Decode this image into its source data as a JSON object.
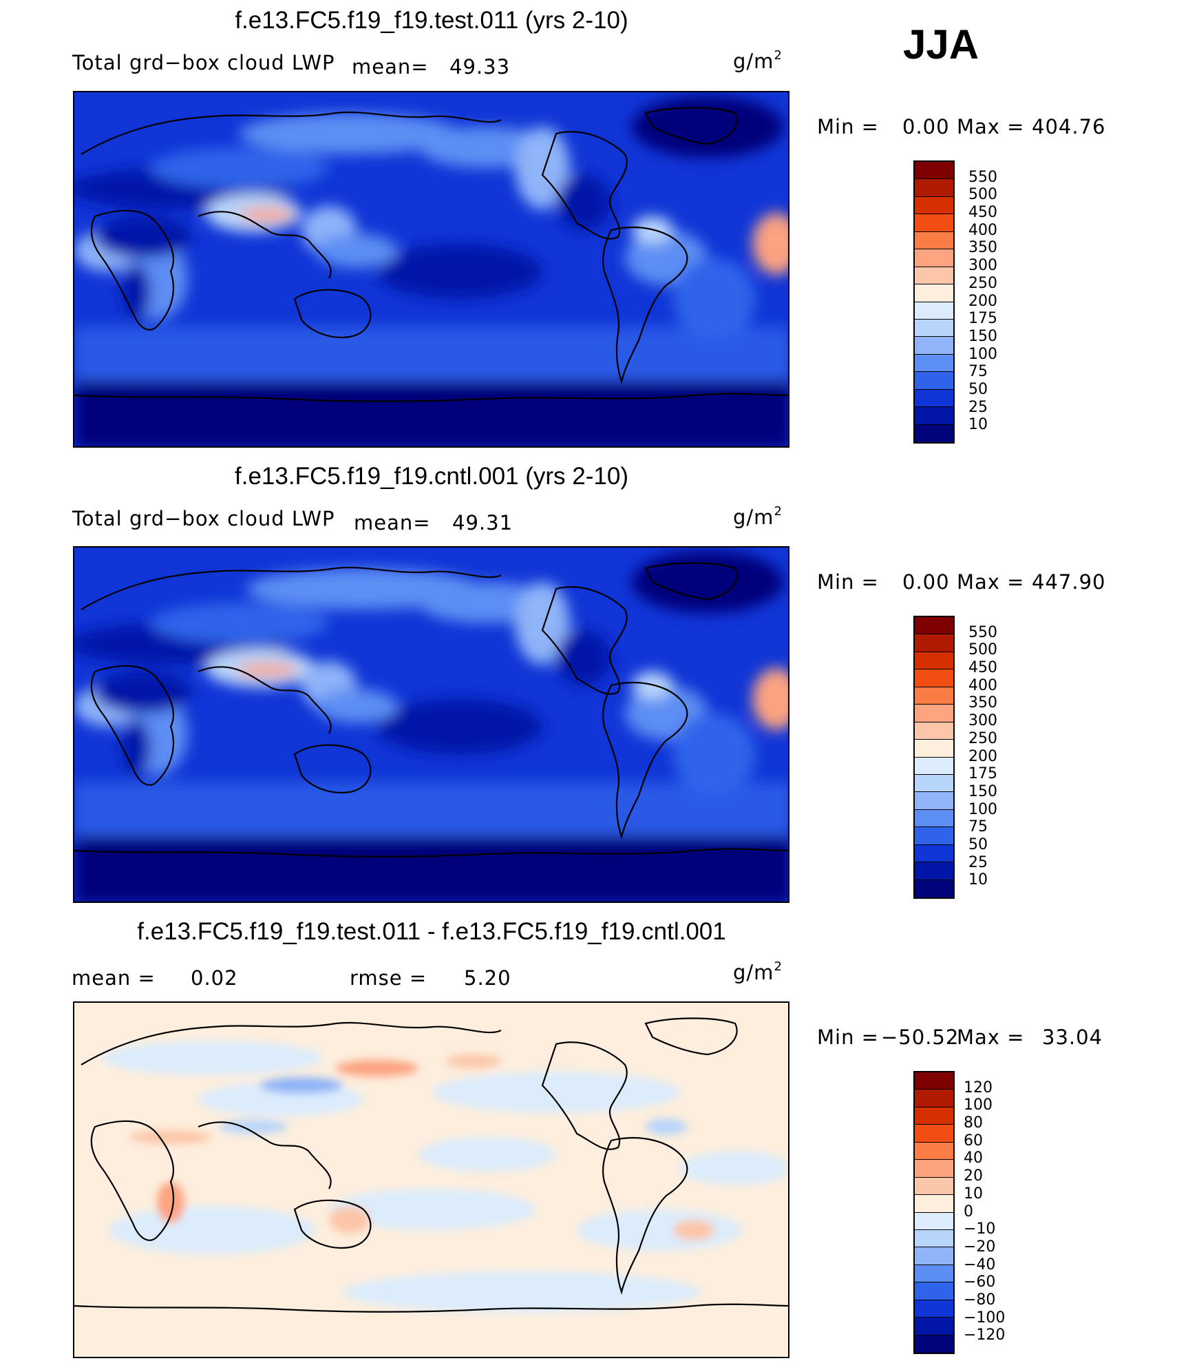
{
  "season": "JJA",
  "panel1": {
    "title": "f.e13.FC5.f19_f19.test.011 (yrs 2-10)",
    "variable": "Total grd−box cloud LWP",
    "mean_label": "mean=",
    "mean_value": "49.33",
    "units": "g/m",
    "units_exp": "2",
    "min_label": "Min  =",
    "min_value": "0.00",
    "max_label": "Max  =",
    "max_value": "404.76"
  },
  "panel2": {
    "title": "f.e13.FC5.f19_f19.cntl.001 (yrs 2-10)",
    "variable": "Total grd−box cloud LWP",
    "mean_label": "mean=",
    "mean_value": "49.31",
    "units": "g/m",
    "units_exp": "2",
    "min_label": "Min  =",
    "min_value": "0.00",
    "max_label": "Max  =",
    "max_value": "447.90"
  },
  "panel3": {
    "title": "f.e13.FC5.f19_f19.test.011 - f.e13.FC5.f19_f19.cntl.001",
    "mean_label": "mean  =",
    "mean_value": "0.02",
    "rmse_label": "rmse  =",
    "rmse_value": "5.20",
    "units": "g/m",
    "units_exp": "2",
    "min_label": "Min  =",
    "min_value": "−50.52",
    "max_label": "Max  =",
    "max_value": "33.04"
  },
  "colorbar_abs": {
    "labels": [
      "550",
      "500",
      "450",
      "400",
      "350",
      "300",
      "250",
      "200",
      "175",
      "150",
      "100",
      "75",
      "50",
      "25",
      "10"
    ],
    "colors": [
      "#7f0000",
      "#b01a00",
      "#d63000",
      "#f24d12",
      "#fb7c45",
      "#fca380",
      "#fcc6a8",
      "#fdeedd",
      "#dcecfc",
      "#b8d5fb",
      "#8fb4f8",
      "#5d8ef3",
      "#2f63ea",
      "#1035d6",
      "#0016a8",
      "#00037a"
    ]
  },
  "colorbar_diff": {
    "labels": [
      "120",
      "100",
      "80",
      "60",
      "40",
      "20",
      "10",
      "0",
      "−10",
      "−20",
      "−40",
      "−60",
      "−80",
      "−100",
      "−120"
    ],
    "colors": [
      "#7f0000",
      "#b01a00",
      "#d63000",
      "#f24d12",
      "#fb7c45",
      "#fca380",
      "#fcc6a8",
      "#fdeedd",
      "#dcecfc",
      "#b8d5fb",
      "#8fb4f8",
      "#5d8ef3",
      "#2f63ea",
      "#1035d6",
      "#0016a8",
      "#00037a"
    ]
  }
}
